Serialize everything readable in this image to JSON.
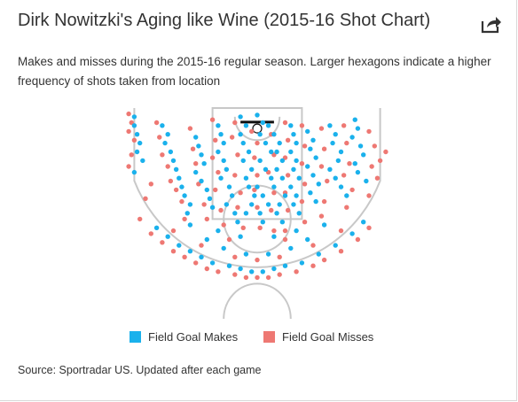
{
  "header": {
    "title": "Dirk Nowitzki's Aging like Wine (2015-16 Shot Chart)",
    "subtitle": "Makes and misses during the 2015-16 regular season. Larger hexagons indicate a higher frequency of shots taken from location",
    "share_icon": "share-arrow-icon"
  },
  "legend": {
    "makes_label": "Field Goal Makes",
    "misses_label": "Field Goal Misses"
  },
  "footer": {
    "source": "Source: Sportradar US. Updated after each game"
  },
  "colors": {
    "make": "#1ab1ec",
    "miss": "#ee7873",
    "court_lines": "#c8c8c8",
    "rim": "#111111"
  },
  "chart_data": {
    "type": "scatter",
    "title": "Dirk Nowitzki's Aging like Wine (2015-16 Shot Chart)",
    "description_note": "",
    "units": "feet from basket (x: sideline to sideline, y: distance from baseline)",
    "xlim": [
      -25,
      25
    ],
    "ylim": [
      0,
      31
    ],
    "legend_position": "bottom-center",
    "grid": false,
    "series": [
      {
        "name": "Field Goal Makes",
        "color": "#1ab1ec",
        "points": [
          [
            -22,
            1.5
          ],
          [
            -22,
            3
          ],
          [
            -21.5,
            4.5
          ],
          [
            -21,
            6
          ],
          [
            -21.5,
            7.5
          ],
          [
            -20.5,
            9
          ],
          [
            -22,
            11
          ],
          [
            -17,
            3
          ],
          [
            -16,
            4.5
          ],
          [
            -16.5,
            6
          ],
          [
            -15.5,
            7.5
          ],
          [
            -15,
            9
          ],
          [
            -14.5,
            10.5
          ],
          [
            -14,
            12
          ],
          [
            -13.5,
            13.5
          ],
          [
            -13,
            15
          ],
          [
            -12,
            16.5
          ],
          [
            -12.5,
            18
          ],
          [
            -11,
            5
          ],
          [
            -10.5,
            6.5
          ],
          [
            -10,
            8
          ],
          [
            -9.5,
            9.5
          ],
          [
            -11,
            11
          ],
          [
            -10,
            12.5
          ],
          [
            -9,
            14
          ],
          [
            -8.5,
            15.5
          ],
          [
            -8,
            17
          ],
          [
            -7,
            3
          ],
          [
            -6.5,
            4.5
          ],
          [
            -6,
            6
          ],
          [
            -7,
            7.5
          ],
          [
            -6,
            9
          ],
          [
            -5.5,
            10.5
          ],
          [
            -6.5,
            12
          ],
          [
            -5,
            13.5
          ],
          [
            -4.5,
            15
          ],
          [
            -5.5,
            16.5
          ],
          [
            -4,
            18
          ],
          [
            -3.5,
            19.5
          ],
          [
            -3,
            1.5
          ],
          [
            -2,
            3
          ],
          [
            -3,
            4.5
          ],
          [
            -2.5,
            6
          ],
          [
            -1.5,
            7.5
          ],
          [
            -2.5,
            9
          ],
          [
            -1,
            10.5
          ],
          [
            -2,
            12
          ],
          [
            -1.5,
            13.5
          ],
          [
            -0.5,
            15
          ],
          [
            -1,
            16.5
          ],
          [
            -2,
            18
          ],
          [
            0,
            1.2
          ],
          [
            1,
            2.5
          ],
          [
            2,
            3
          ],
          [
            0.5,
            4.5
          ],
          [
            1.5,
            6
          ],
          [
            2.5,
            7.5
          ],
          [
            0.5,
            9
          ],
          [
            1.5,
            10.5
          ],
          [
            2.5,
            12
          ],
          [
            0,
            13.5
          ],
          [
            1,
            15
          ],
          [
            2,
            16.5
          ],
          [
            0.5,
            18
          ],
          [
            1,
            19.5
          ],
          [
            3,
            4.5
          ],
          [
            4,
            6
          ],
          [
            3.5,
            7.5
          ],
          [
            4.5,
            9
          ],
          [
            3.5,
            10.5
          ],
          [
            4.5,
            12
          ],
          [
            3,
            13.5
          ],
          [
            5,
            15
          ],
          [
            4,
            16.5
          ],
          [
            3.5,
            18
          ],
          [
            4.5,
            19.5
          ],
          [
            6,
            3
          ],
          [
            6.5,
            4.5
          ],
          [
            7,
            6
          ],
          [
            6,
            7.5
          ],
          [
            7,
            9
          ],
          [
            6.5,
            10.5
          ],
          [
            7.5,
            12
          ],
          [
            6,
            13.5
          ],
          [
            7,
            15
          ],
          [
            6.5,
            16.5
          ],
          [
            7.5,
            18
          ],
          [
            9,
            4
          ],
          [
            10,
            5.5
          ],
          [
            9.5,
            7
          ],
          [
            10.5,
            8.5
          ],
          [
            9,
            10
          ],
          [
            10,
            11.5
          ],
          [
            11,
            13
          ],
          [
            9.5,
            14.5
          ],
          [
            10.5,
            16
          ],
          [
            13,
            3
          ],
          [
            14,
            4.5
          ],
          [
            13.5,
            6
          ],
          [
            15,
            7.5
          ],
          [
            14.5,
            9
          ],
          [
            13,
            10.5
          ],
          [
            14,
            12
          ],
          [
            15,
            13.5
          ],
          [
            16,
            15
          ],
          [
            17.5,
            2
          ],
          [
            18,
            3.5
          ],
          [
            17,
            5
          ],
          [
            18.5,
            6.5
          ],
          [
            19,
            8
          ],
          [
            17.5,
            9.5
          ],
          [
            18,
            11
          ],
          [
            19.5,
            12.5
          ],
          [
            -18,
            20.5
          ],
          [
            -16,
            22
          ],
          [
            -14,
            23.5
          ],
          [
            -12,
            24.5
          ],
          [
            -10,
            25.5
          ],
          [
            -8,
            26.5
          ],
          [
            -5,
            27
          ],
          [
            -3,
            27.5
          ],
          [
            -1,
            28
          ],
          [
            1,
            28
          ],
          [
            3,
            27.5
          ],
          [
            5,
            27
          ],
          [
            8,
            26.5
          ],
          [
            11,
            25
          ],
          [
            14,
            23.5
          ],
          [
            17,
            21.5
          ],
          [
            19,
            19.5
          ],
          [
            -9,
            22.5
          ],
          [
            -6,
            24
          ],
          [
            -2,
            25
          ],
          [
            2,
            25
          ],
          [
            6,
            24
          ],
          [
            9,
            22.5
          ],
          [
            -12,
            20
          ],
          [
            -7,
            21
          ],
          [
            -3,
            22
          ],
          [
            3,
            22
          ],
          [
            7,
            21
          ],
          [
            12,
            20
          ]
        ]
      },
      {
        "name": "Field Goal Misses",
        "color": "#ee7873",
        "points": [
          [
            -23,
            1
          ],
          [
            -22.5,
            2.5
          ],
          [
            -23,
            4
          ],
          [
            -22,
            5.5
          ],
          [
            -22.5,
            8
          ],
          [
            -23,
            10
          ],
          [
            -19,
            13
          ],
          [
            -20,
            15.5
          ],
          [
            -18,
            2.5
          ],
          [
            -17.5,
            5
          ],
          [
            -17,
            8
          ],
          [
            -16,
            10
          ],
          [
            -15.5,
            12.5
          ],
          [
            -14.5,
            14
          ],
          [
            -13.5,
            16
          ],
          [
            -13,
            19
          ],
          [
            -12,
            3.5
          ],
          [
            -11.5,
            7
          ],
          [
            -11,
            9.5
          ],
          [
            -10.5,
            13
          ],
          [
            -9.5,
            16.5
          ],
          [
            -9,
            19
          ],
          [
            -8,
            2
          ],
          [
            -7.5,
            5.5
          ],
          [
            -8,
            8.5
          ],
          [
            -7,
            11
          ],
          [
            -7.5,
            14
          ],
          [
            -6.5,
            17.5
          ],
          [
            -6,
            20
          ],
          [
            -4,
            2.5
          ],
          [
            -4.5,
            5
          ],
          [
            -3.5,
            8
          ],
          [
            -4,
            11.5
          ],
          [
            -3,
            14.5
          ],
          [
            -3.5,
            17
          ],
          [
            -2.5,
            20.5
          ],
          [
            -1,
            4
          ],
          [
            0,
            6
          ],
          [
            -0.5,
            8.5
          ],
          [
            0,
            11.5
          ],
          [
            -0.5,
            14
          ],
          [
            0,
            17
          ],
          [
            0.5,
            20.5
          ],
          [
            2.5,
            4.5
          ],
          [
            3,
            8
          ],
          [
            2,
            11
          ],
          [
            3,
            14.5
          ],
          [
            2.5,
            17.5
          ],
          [
            3,
            21
          ],
          [
            5,
            2.5
          ],
          [
            5.5,
            5.5
          ],
          [
            5,
            8.5
          ],
          [
            5.5,
            11.5
          ],
          [
            5,
            14.5
          ],
          [
            5.5,
            17.5
          ],
          [
            5,
            21
          ],
          [
            8,
            3
          ],
          [
            8.5,
            6.5
          ],
          [
            8,
            9.5
          ],
          [
            8.5,
            13
          ],
          [
            8,
            16
          ],
          [
            8.5,
            19.5
          ],
          [
            11.5,
            3.5
          ],
          [
            12,
            7
          ],
          [
            11.5,
            10
          ],
          [
            12.5,
            12.5
          ],
          [
            12,
            16
          ],
          [
            11.5,
            18.5
          ],
          [
            15.5,
            3
          ],
          [
            16,
            6
          ],
          [
            16.5,
            9.5
          ],
          [
            15.5,
            11.5
          ],
          [
            17,
            14
          ],
          [
            16,
            17
          ],
          [
            20,
            4
          ],
          [
            21,
            6.5
          ],
          [
            20.5,
            10
          ],
          [
            21.5,
            12
          ],
          [
            20,
            15
          ],
          [
            22,
            9
          ],
          [
            23,
            7.5
          ],
          [
            -21,
            19
          ],
          [
            -19,
            21.5
          ],
          [
            -17,
            23
          ],
          [
            -15,
            24.5
          ],
          [
            -13,
            25.5
          ],
          [
            -11,
            26.5
          ],
          [
            -9,
            27.5
          ],
          [
            -7,
            28
          ],
          [
            -4,
            28.5
          ],
          [
            -2,
            29
          ],
          [
            0,
            29
          ],
          [
            2,
            29
          ],
          [
            4,
            28.5
          ],
          [
            7,
            28
          ],
          [
            10,
            27
          ],
          [
            12,
            26
          ],
          [
            15,
            24.5
          ],
          [
            18,
            22.5
          ],
          [
            20,
            20.5
          ],
          [
            -10,
            23.5
          ],
          [
            -4,
            25.5
          ],
          [
            0,
            26
          ],
          [
            4,
            25.5
          ],
          [
            10,
            23.5
          ],
          [
            -15,
            21
          ],
          [
            -5,
            22.5
          ],
          [
            5,
            22.5
          ],
          [
            15,
            21
          ]
        ]
      }
    ]
  }
}
